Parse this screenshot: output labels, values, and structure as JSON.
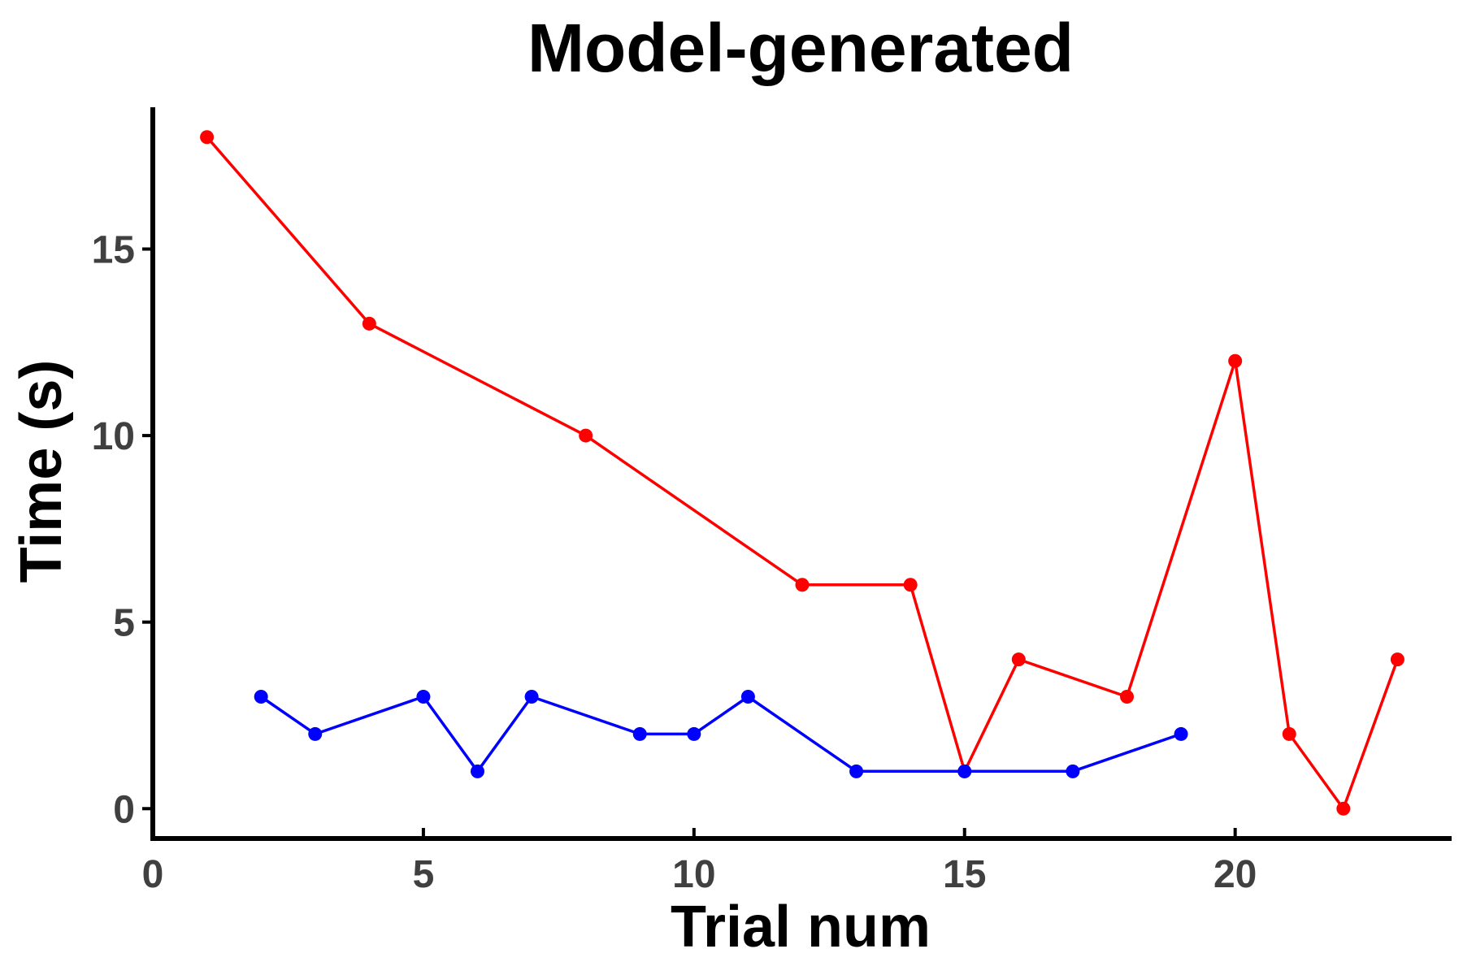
{
  "chart_data": {
    "type": "line",
    "title": "Model-generated",
    "xlabel": "Trial num",
    "ylabel": "Time (s)",
    "xlim": [
      0,
      24
    ],
    "ylim": [
      -0.8,
      18.8
    ],
    "xticks": [
      0,
      5,
      10,
      15,
      20
    ],
    "yticks": [
      0,
      5,
      10,
      15
    ],
    "grid": false,
    "legend": "none",
    "series": [
      {
        "color": "#ff0000",
        "x": [
          1,
          4,
          8,
          12,
          14,
          15,
          16,
          18,
          20,
          21,
          22,
          23
        ],
        "y": [
          18,
          13,
          10,
          6,
          6,
          1,
          4,
          3,
          12,
          2,
          0,
          4
        ]
      },
      {
        "color": "#0000ff",
        "x": [
          2,
          3,
          5,
          6,
          7,
          9,
          10,
          11,
          13,
          15,
          17,
          19
        ],
        "y": [
          3,
          2,
          3,
          1,
          3,
          2,
          2,
          3,
          1,
          1,
          1,
          2
        ]
      }
    ]
  }
}
